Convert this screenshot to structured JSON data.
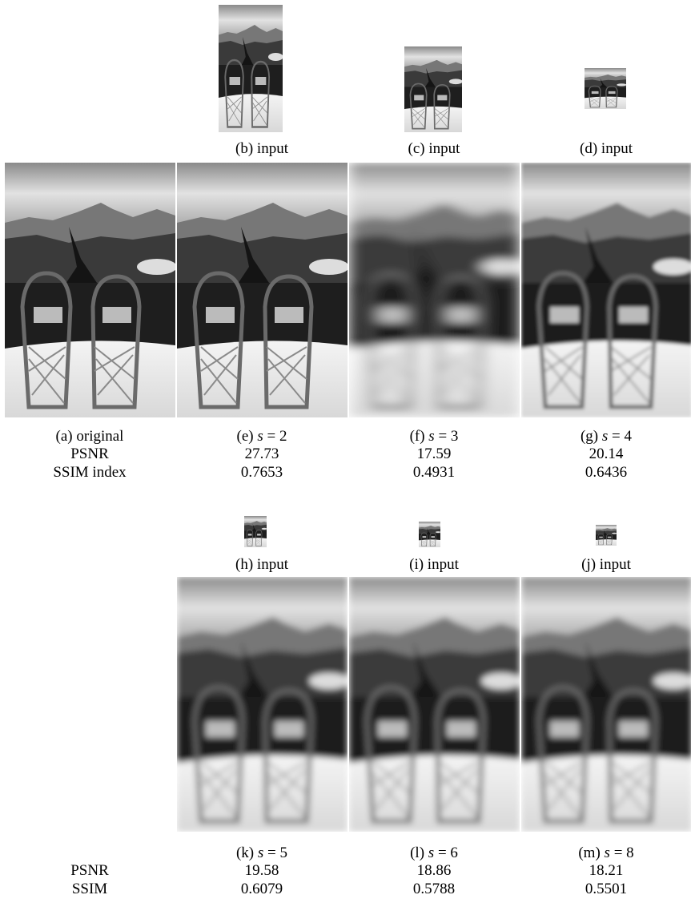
{
  "figure": {
    "top_inputs": [
      "(b) input",
      "(c) input",
      "(d) input"
    ],
    "row1": {
      "captions": [
        "(a) original",
        "(e) s = 2",
        "(f) s = 3",
        "(g) s = 4"
      ],
      "psnr_label": "PSNR",
      "psnr": [
        "27.73",
        "17.59",
        "20.14"
      ],
      "ssim_label": "SSIM index",
      "ssim": [
        "0.7653",
        "0.4931",
        "0.6436"
      ]
    },
    "bottom_inputs": [
      "(h) input",
      "(i) input",
      "(j) input"
    ],
    "row2": {
      "captions": [
        "(k) s = 5",
        "(l) s = 6",
        "(m) s = 8"
      ],
      "psnr_label": "PSNR",
      "psnr": [
        "19.58",
        "18.86",
        "18.21"
      ],
      "ssim_label": "SSIM",
      "ssim": [
        "0.6079",
        "0.5788",
        "0.5501"
      ]
    }
  }
}
